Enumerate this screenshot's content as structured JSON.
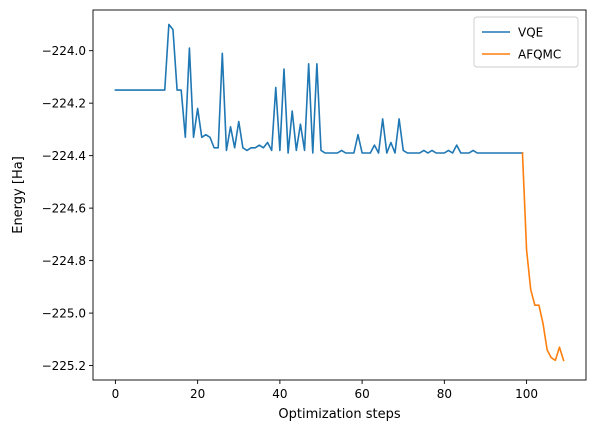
{
  "chart_data": {
    "type": "line",
    "title": "",
    "xlabel": "Optimization steps",
    "ylabel": "Energy [Ha]",
    "xlim": [
      -5.45,
      114.45
    ],
    "ylim": [
      -225.255,
      -223.845
    ],
    "xticks": [
      0,
      20,
      40,
      60,
      80,
      100
    ],
    "xtick_labels": [
      "0",
      "20",
      "40",
      "60",
      "80",
      "100"
    ],
    "yticks": [
      -224.0,
      -224.2,
      -224.4,
      -224.6,
      -224.8,
      -225.0,
      -225.2
    ],
    "ytick_labels": [
      "−224.0",
      "−224.2",
      "−224.4",
      "−224.6",
      "−224.8",
      "−225.0",
      "−225.2"
    ],
    "grid": false,
    "legend_position": "top-right",
    "series": [
      {
        "name": "VQE",
        "color": "#1f77b4",
        "x": [
          0,
          1,
          2,
          3,
          4,
          5,
          6,
          7,
          8,
          9,
          10,
          11,
          12,
          13,
          14,
          15,
          16,
          17,
          18,
          19,
          20,
          21,
          22,
          23,
          24,
          25,
          26,
          27,
          28,
          29,
          30,
          31,
          32,
          33,
          34,
          35,
          36,
          37,
          38,
          39,
          40,
          41,
          42,
          43,
          44,
          45,
          46,
          47,
          48,
          49,
          50,
          51,
          52,
          53,
          54,
          55,
          56,
          57,
          58,
          59,
          60,
          61,
          62,
          63,
          64,
          65,
          66,
          67,
          68,
          69,
          70,
          71,
          72,
          73,
          74,
          75,
          76,
          77,
          78,
          79,
          80,
          81,
          82,
          83,
          84,
          85,
          86,
          87,
          88,
          89,
          90,
          91,
          92,
          93,
          94,
          95,
          96,
          97,
          98,
          99
        ],
        "y": [
          -224.15,
          -224.15,
          -224.15,
          -224.15,
          -224.15,
          -224.15,
          -224.15,
          -224.15,
          -224.15,
          -224.15,
          -224.15,
          -224.15,
          -224.15,
          -223.9,
          -223.92,
          -224.15,
          -224.15,
          -224.33,
          -223.99,
          -224.33,
          -224.22,
          -224.33,
          -224.32,
          -224.33,
          -224.37,
          -224.37,
          -224.01,
          -224.38,
          -224.29,
          -224.37,
          -224.27,
          -224.37,
          -224.38,
          -224.37,
          -224.37,
          -224.36,
          -224.37,
          -224.35,
          -224.38,
          -224.14,
          -224.38,
          -224.07,
          -224.39,
          -224.23,
          -224.38,
          -224.28,
          -224.38,
          -224.05,
          -224.39,
          -224.05,
          -224.38,
          -224.39,
          -224.39,
          -224.39,
          -224.39,
          -224.38,
          -224.39,
          -224.39,
          -224.39,
          -224.32,
          -224.39,
          -224.39,
          -224.39,
          -224.36,
          -224.39,
          -224.26,
          -224.39,
          -224.35,
          -224.39,
          -224.26,
          -224.38,
          -224.39,
          -224.39,
          -224.39,
          -224.39,
          -224.38,
          -224.39,
          -224.38,
          -224.39,
          -224.39,
          -224.39,
          -224.38,
          -224.39,
          -224.36,
          -224.39,
          -224.39,
          -224.39,
          -224.38,
          -224.39,
          -224.39,
          -224.39,
          -224.39,
          -224.39,
          -224.39,
          -224.39,
          -224.39,
          -224.39,
          -224.39,
          -224.39,
          -224.39
        ]
      },
      {
        "name": "AFQMC",
        "color": "#ff7f0e",
        "x": [
          99,
          100,
          101,
          102,
          103,
          104,
          105,
          106,
          107,
          108,
          109
        ],
        "y": [
          -224.39,
          -224.76,
          -224.91,
          -224.97,
          -224.97,
          -225.04,
          -225.14,
          -225.17,
          -225.18,
          -225.13,
          -225.18
        ]
      }
    ]
  }
}
